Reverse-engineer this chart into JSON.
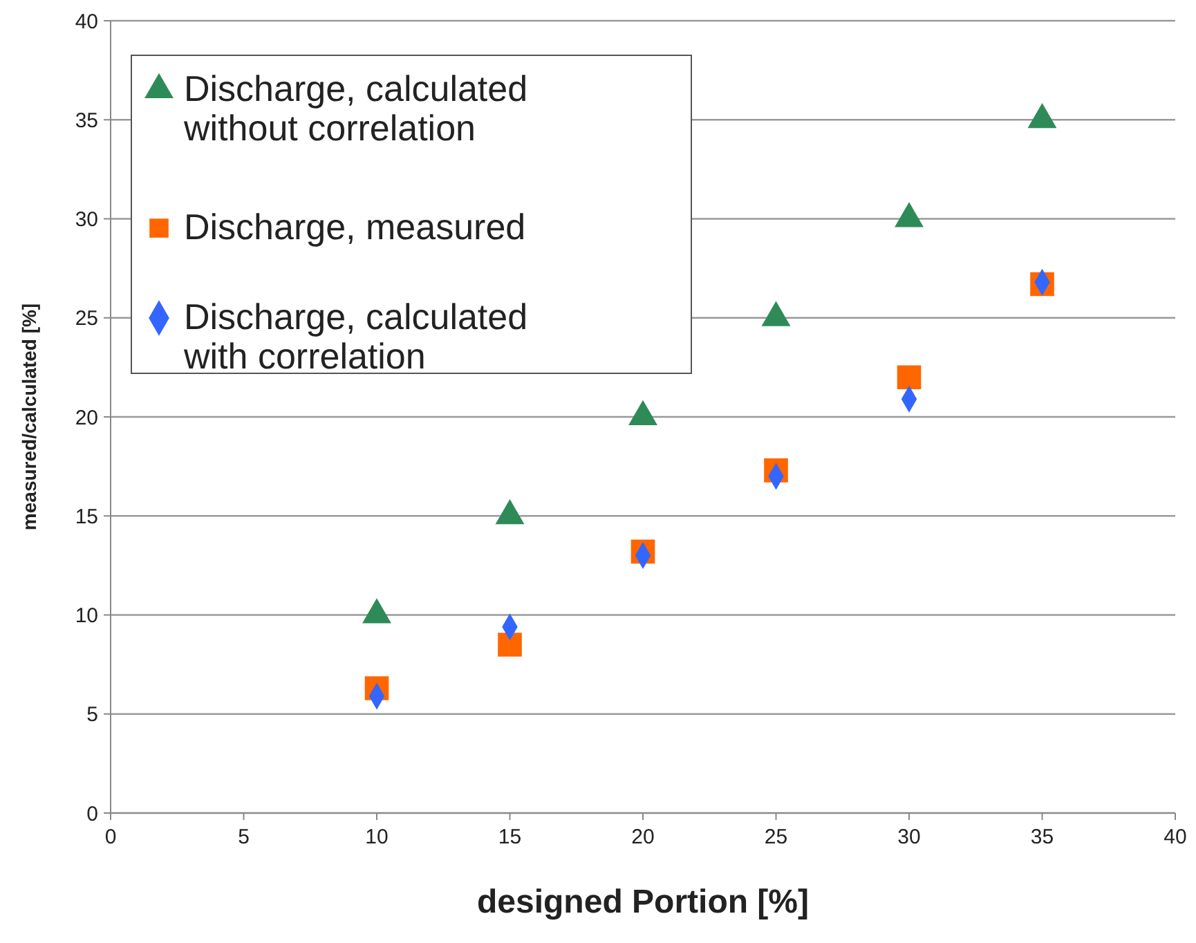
{
  "chart_data": {
    "type": "scatter",
    "xlabel": "designed Portion [%]",
    "ylabel": "measured/calculated [%]",
    "xlim": [
      0,
      40
    ],
    "xticks": [
      0,
      5,
      10,
      15,
      20,
      25,
      30,
      35,
      40
    ],
    "ylim": [
      0,
      40
    ],
    "yticks": [
      0,
      5,
      10,
      15,
      20,
      25,
      30,
      35,
      40
    ],
    "grid": "y",
    "legend": "top left",
    "series": [
      {
        "name": "Discharge, calculated without correlation",
        "color": "#2e8b57",
        "marker": "triangle",
        "x": [
          10,
          15,
          20,
          25,
          30,
          35
        ],
        "values": [
          10,
          15,
          20,
          25,
          30,
          35
        ]
      },
      {
        "name": "Discharge, measured",
        "color": "#ff6600",
        "marker": "square",
        "x": [
          10,
          15,
          20,
          25,
          30,
          35
        ],
        "values": [
          6.3,
          8.5,
          13.2,
          17.3,
          22,
          26.7
        ]
      },
      {
        "name": "Discharge, calculated with correlation",
        "color": "#3366ff",
        "marker": "diamond",
        "x": [
          10,
          15,
          20,
          25,
          30,
          35
        ],
        "values": [
          5.9,
          9.4,
          13,
          17,
          20.9,
          26.8
        ]
      }
    ]
  }
}
